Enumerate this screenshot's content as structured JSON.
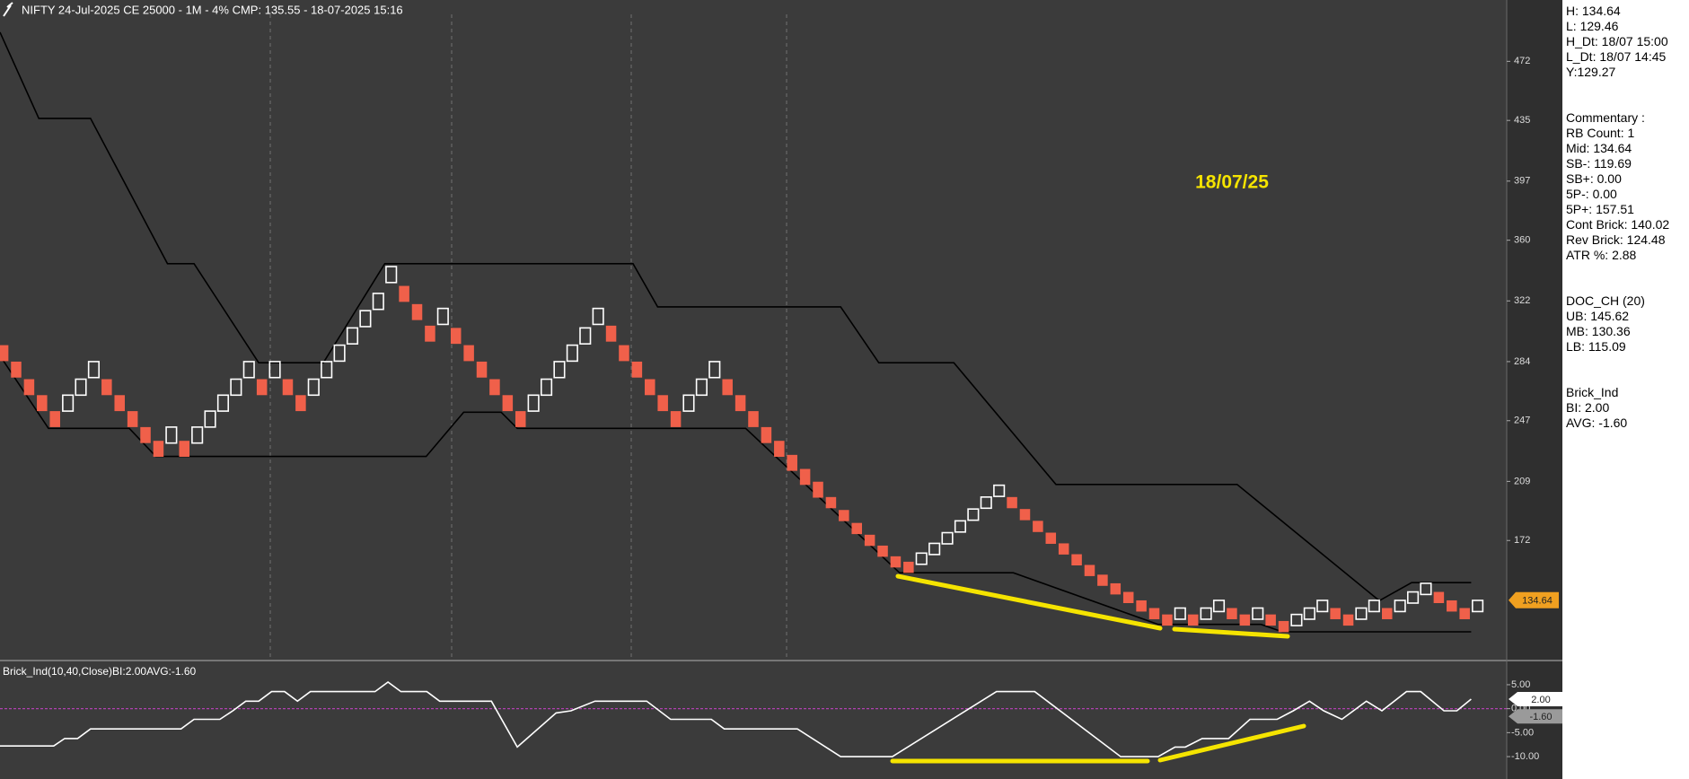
{
  "header": {
    "title": "NIFTY 24-Jul-2025 CE 25000 - 1M - 4% CMP: 135.55 - 18-07-2025 15:16"
  },
  "info_panel": {
    "blocks": [
      [
        "H: 134.64",
        "L: 129.46",
        "H_Dt: 18/07 15:00",
        "L_Dt: 18/07 14:45",
        "Y:129.27"
      ],
      [
        "Commentary :",
        "RB Count: 1",
        "Mid: 134.64",
        "SB-: 119.69",
        "SB+: 0.00",
        "5P-: 0.00",
        "5P+: 157.51",
        "Cont Brick: 140.02",
        "Rev Brick: 124.48",
        "ATR %: 2.88"
      ],
      [
        "DOC_CH (20)",
        "UB: 145.62",
        "MB: 130.36",
        "LB: 115.09"
      ],
      [
        "Brick_Ind",
        "BI: 2.00",
        "AVG: -1.60"
      ]
    ]
  },
  "chart_data": [
    {
      "type": "renko",
      "annotation": "18/07/25",
      "last_price": 134.64,
      "up_color": "#ffffff",
      "down_color": "#f0604a",
      "tag_color": "#f0a020",
      "xlim": [
        -0.25,
        116.25
      ],
      "ylim": [
        97.4,
        510.4
      ],
      "yticks": [
        472,
        435,
        397,
        360,
        322,
        284,
        247,
        209,
        172
      ],
      "open": [
        294.3,
        284,
        273,
        263,
        253,
        253,
        263,
        274,
        273,
        263,
        253,
        243,
        234.4,
        233,
        234.4,
        233,
        243,
        253,
        263,
        274,
        273,
        274,
        273,
        263,
        263,
        274,
        284.3,
        295.1,
        305.9,
        316.7,
        333.5,
        331.4,
        320,
        306.5,
        307.3,
        305.1,
        294.3,
        284,
        273,
        263,
        253,
        253,
        263,
        274,
        284.3,
        295.1,
        307.3,
        306.5,
        294.3,
        284,
        273,
        263,
        253,
        253,
        263,
        274,
        273,
        263,
        253,
        243,
        234.4,
        225.6,
        216.8,
        208.8,
        199.2,
        191.1,
        183,
        175.6,
        168.8,
        162.1,
        158.7,
        157.1,
        163.2,
        169.9,
        177.3,
        184.7,
        192.2,
        199.6,
        199.2,
        191.7,
        184.3,
        176.9,
        170.2,
        163.4,
        156.7,
        150.6,
        145.2,
        139.8,
        134.5,
        129.7,
        125.7,
        122.7,
        125.7,
        122.7,
        127.5,
        129.7,
        125.7,
        122.7,
        125.7,
        121.6,
        118.7,
        122.7,
        127.5,
        129.7,
        125.7,
        122.7,
        127.5,
        129.7,
        127.5,
        132.8,
        138.2,
        139.8,
        134.5,
        129.7,
        127.5
      ],
      "close": [
        284.3,
        274,
        263,
        253,
        243,
        263,
        273,
        284,
        263,
        253,
        243,
        233,
        224.4,
        243,
        224.4,
        243,
        253,
        263,
        273,
        284,
        263,
        284,
        263,
        253,
        273,
        284,
        294.3,
        305.1,
        315.9,
        326.7,
        343.5,
        321.4,
        310,
        296.5,
        317.3,
        295.1,
        284.3,
        274,
        263,
        253,
        243,
        263,
        273,
        284,
        294.3,
        305.1,
        317.3,
        296.5,
        284.3,
        274,
        263,
        253,
        243,
        263,
        273,
        284,
        263,
        253,
        243,
        233,
        224.4,
        215.6,
        206.8,
        198.8,
        192.2,
        184.1,
        176,
        168.6,
        161.8,
        155.1,
        151.7,
        164.1,
        170.2,
        176.9,
        184.3,
        191.7,
        199.2,
        206.6,
        192.2,
        184.7,
        177.3,
        169.9,
        163.2,
        156.4,
        149.7,
        143.6,
        138.2,
        132.8,
        127.5,
        122.7,
        118.7,
        129.7,
        118.7,
        129.7,
        134.5,
        122.7,
        118.7,
        129.7,
        118.7,
        114.6,
        125.7,
        129.7,
        134.5,
        122.7,
        118.7,
        129.7,
        134.5,
        122.7,
        134.5,
        139.8,
        145.2,
        132.8,
        127.5,
        122.7,
        134.5
      ],
      "series": [
        {
          "color": "#000000",
          "x": [
            -0.25,
            2.75,
            6.75,
            12.7,
            14.75,
            19.75,
            24.75,
            29.5,
            48.7,
            50.6,
            64.75,
            67.7,
            73.5,
            81.4,
            95.4,
            106.4,
            108.9,
            113.5
          ],
          "values": [
            490.2,
            436.3,
            436.3,
            345.3,
            345.3,
            283.3,
            283.3,
            345.3,
            345.3,
            318.3,
            318.3,
            283.3,
            283.3,
            207.1,
            207.1,
            134.3,
            145.6,
            145.6
          ]
        },
        {
          "color": "#000000",
          "x": [
            0,
            3.5,
            9.75,
            11.8,
            32.7,
            35.6,
            38.5,
            39.75,
            57.4,
            69.3,
            78.1,
            89.3,
            97.25,
            98.9,
            113.5
          ],
          "values": [
            284.6,
            242.2,
            242.2,
            224.6,
            224.6,
            252.3,
            252.3,
            242.2,
            242.2,
            151.8,
            151.8,
            119.5,
            119.5,
            114.8,
            114.8
          ]
        }
      ]
    },
    {
      "type": "line",
      "title": "Brick_Ind(10,40,Close)BI:2.00AVG:-1.60",
      "zero_line_color": "#b040b0",
      "xlim": [
        -0.25,
        116.25
      ],
      "ylim": [
        -14.67,
        9.67
      ],
      "yticks": [
        {
          "value": 5,
          "label": "5.00"
        },
        {
          "value": 0,
          "label": "0.00"
        },
        {
          "value": -5,
          "label": "-5.00"
        },
        {
          "value": -10,
          "label": "-10.00"
        }
      ],
      "series": [
        {
          "color": "#ffffff",
          "x": [
            -0.25,
            3.9,
            4.75,
            5.75,
            6.75,
            13.75,
            14.75,
            16.75,
            17.75,
            18.75,
            19.75,
            20.75,
            21.75,
            22.75,
            23.75,
            28.75,
            29.75,
            30.75,
            32.75,
            33.75,
            37.75,
            39.75,
            42.75,
            43.9,
            45.75,
            49.75,
            51.6,
            54.75,
            55.75,
            61.4,
            64.75,
            68.75,
            76.8,
            79.75,
            86.4,
            89.3,
            90.6,
            91.4,
            92.7,
            94.75,
            96.4,
            98.5,
            99.75,
            101,
            102.1,
            103.5,
            105.4,
            106.6,
            108.5,
            109.6,
            111.4,
            112.4,
            113.5
          ],
          "values": [
            -7.78,
            -7.78,
            -6.22,
            -6.22,
            -4.22,
            -4.22,
            -2.22,
            -2.22,
            -0.44,
            1.56,
            1.56,
            3.56,
            3.56,
            1.56,
            3.56,
            3.56,
            5.56,
            3.56,
            3.56,
            1.56,
            1.56,
            -8,
            -0.89,
            -0.44,
            1.56,
            1.56,
            -2.22,
            -2.22,
            -4.22,
            -4.22,
            -10,
            -10,
            3.56,
            3.56,
            -10,
            -10,
            -8,
            -8,
            -6.22,
            -6.22,
            -2.22,
            -2.22,
            -0.44,
            1.56,
            -0.44,
            -2.22,
            1.56,
            -0.44,
            3.56,
            3.56,
            -0.44,
            -0.44,
            2
          ]
        }
      ],
      "markers": [
        {
          "value": 2,
          "label": "2.00",
          "color": "#ffffff"
        },
        {
          "value": -1.6,
          "label": "-1.60",
          "color": "#9a9a9a"
        }
      ]
    }
  ]
}
